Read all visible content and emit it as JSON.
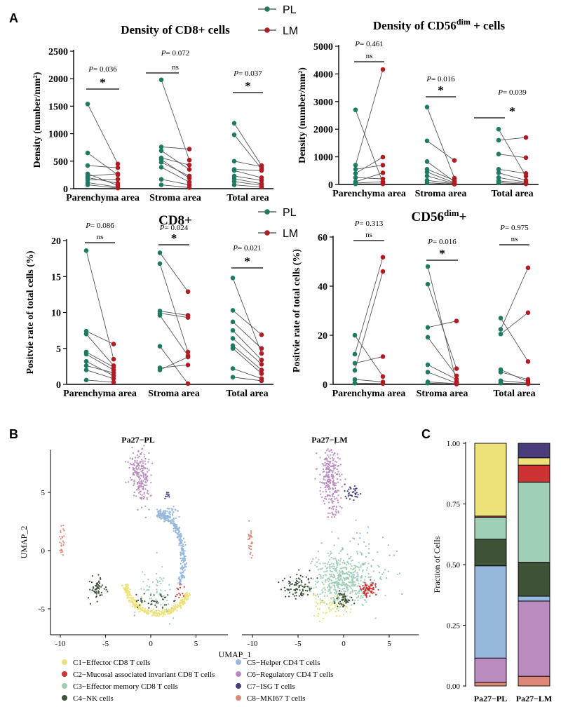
{
  "panel_labels": {
    "a": "A",
    "b": "B",
    "c": "C"
  },
  "legend": {
    "pl": "PL",
    "lm": "LM"
  },
  "colors": {
    "pl": "#1f7a64",
    "lm": "#b01c24"
  },
  "chart_data": [
    {
      "type": "scatter",
      "title": "Density of CD8+ cells",
      "title_sup": "",
      "ylabel": "Density (number/mm²)",
      "ylim": [
        0,
        2500
      ],
      "yticks": [
        0,
        500,
        1000,
        1500,
        2000,
        2500
      ],
      "categories": [
        "Parenchyma area",
        "Stroma area",
        "Total area"
      ],
      "pl": [
        [
          1540,
          650,
          420,
          270,
          230,
          200,
          160,
          110,
          70
        ],
        [
          1980,
          760,
          690,
          560,
          530,
          480,
          390,
          170,
          70
        ],
        [
          1190,
          980,
          500,
          350,
          330,
          230,
          180,
          130,
          70
        ]
      ],
      "lm": [
        [
          450,
          380,
          270,
          250,
          170,
          100,
          60,
          30,
          10
        ],
        [
          720,
          520,
          430,
          350,
          230,
          190,
          120,
          70,
          20
        ],
        [
          420,
          400,
          360,
          330,
          200,
          150,
          90,
          60,
          30
        ]
      ],
      "pairs": [
        [
          [
            0,
            0
          ],
          [
            1,
            3
          ],
          [
            2,
            1
          ],
          [
            3,
            6
          ],
          [
            4,
            2
          ],
          [
            5,
            5
          ],
          [
            6,
            4
          ],
          [
            7,
            7
          ],
          [
            8,
            8
          ]
        ],
        [
          [
            0,
            1
          ],
          [
            1,
            0
          ],
          [
            2,
            3
          ],
          [
            3,
            2
          ],
          [
            4,
            5
          ],
          [
            5,
            4
          ],
          [
            6,
            6
          ],
          [
            7,
            7
          ],
          [
            8,
            8
          ]
        ],
        [
          [
            0,
            0
          ],
          [
            1,
            2
          ],
          [
            2,
            1
          ],
          [
            3,
            3
          ],
          [
            4,
            4
          ],
          [
            5,
            5
          ],
          [
            6,
            6
          ],
          [
            7,
            7
          ],
          [
            8,
            8
          ]
        ]
      ],
      "pvalues": [
        "0.036",
        "0.072",
        "0.037"
      ],
      "sig": [
        "*",
        "ns",
        "*"
      ]
    },
    {
      "type": "scatter",
      "title": "Density of CD56",
      "title_sup": "dim",
      "title_end": " + cells",
      "ylabel": "Density (number/mm²)",
      "ylim": [
        0,
        5000
      ],
      "yticks": [
        0,
        1000,
        2000,
        3000,
        4000,
        5000
      ],
      "categories": [
        "Parenchyma area",
        "Stroma area",
        "Total area"
      ],
      "pl": [
        [
          2700,
          700,
          550,
          400,
          250,
          100,
          50,
          20
        ],
        [
          2800,
          1580,
          830,
          550,
          450,
          310,
          150,
          60
        ],
        [
          2000,
          1600,
          1100,
          550,
          420,
          250,
          130,
          60
        ]
      ],
      "lm": [
        [
          4160,
          990,
          700,
          420,
          200,
          100,
          60,
          20
        ],
        [
          870,
          230,
          150,
          100,
          60,
          30,
          20,
          10
        ],
        [
          1700,
          970,
          400,
          300,
          150,
          80,
          40,
          20
        ]
      ],
      "pairs": [
        [
          [
            0,
            6
          ],
          [
            1,
            0
          ],
          [
            2,
            2
          ],
          [
            3,
            1
          ],
          [
            4,
            4
          ],
          [
            5,
            3
          ],
          [
            6,
            5
          ],
          [
            7,
            7
          ]
        ],
        [
          [
            0,
            1
          ],
          [
            1,
            0
          ],
          [
            2,
            3
          ],
          [
            3,
            2
          ],
          [
            4,
            4
          ],
          [
            5,
            5
          ],
          [
            6,
            6
          ],
          [
            7,
            7
          ]
        ],
        [
          [
            0,
            3
          ],
          [
            1,
            0
          ],
          [
            2,
            1
          ],
          [
            3,
            2
          ],
          [
            4,
            4
          ],
          [
            5,
            5
          ],
          [
            6,
            6
          ],
          [
            7,
            7
          ]
        ]
      ],
      "pvalues": [
        "0.461",
        "0.016",
        "0.039"
      ],
      "sig": [
        "ns",
        "*",
        "*"
      ],
      "nobar_index": 2
    },
    {
      "type": "scatter",
      "title": "CD8+",
      "title_sup": "",
      "ylabel": "Positvie rate of total cells (%)",
      "ylim": [
        0,
        20
      ],
      "yticks": [
        0,
        5,
        10,
        15,
        20
      ],
      "categories": [
        "Parenchyma area",
        "Stroma area",
        "Total area"
      ],
      "pl": [
        [
          18.6,
          7.4,
          7.0,
          4.5,
          4.2,
          3.2,
          2.6,
          2.0,
          0.6
        ],
        [
          18.3,
          16.8,
          10.2,
          9.9,
          9.6,
          5.3,
          2.3,
          2.0
        ],
        [
          14.8,
          10.3,
          8.7,
          7.5,
          6.4,
          5.4,
          5.0,
          2.2,
          1.0
        ]
      ],
      "lm": [
        [
          5.6,
          3.5,
          2.6,
          2.4,
          2.0,
          1.6,
          1.2,
          0.8,
          0.3
        ],
        [
          12.9,
          9.6,
          9.3,
          4.5,
          4.0,
          3.8,
          2.7,
          0.1
        ],
        [
          6.9,
          5.0,
          4.3,
          3.4,
          2.8,
          2.0,
          1.5,
          0.8,
          0.5
        ]
      ],
      "pairs": [
        [
          [
            0,
            1
          ],
          [
            1,
            0
          ],
          [
            2,
            2
          ],
          [
            3,
            3
          ],
          [
            4,
            4
          ],
          [
            5,
            6
          ],
          [
            6,
            5
          ],
          [
            7,
            7
          ],
          [
            8,
            8
          ]
        ],
        [
          [
            0,
            0
          ],
          [
            1,
            3
          ],
          [
            2,
            1
          ],
          [
            3,
            2
          ],
          [
            4,
            4
          ],
          [
            5,
            7
          ],
          [
            6,
            6
          ],
          [
            7,
            5
          ]
        ],
        [
          [
            0,
            2
          ],
          [
            1,
            0
          ],
          [
            2,
            1
          ],
          [
            3,
            3
          ],
          [
            4,
            4
          ],
          [
            5,
            5
          ],
          [
            6,
            6
          ],
          [
            7,
            7
          ],
          [
            8,
            8
          ]
        ]
      ],
      "pvalues": [
        "0.086",
        "0.024",
        "0.021"
      ],
      "sig": [
        "ns",
        "*",
        "*"
      ]
    },
    {
      "type": "scatter",
      "title": "CD56",
      "title_sup": "dim",
      "title_end": "+",
      "ylabel": "Positvie rate of total cells (%)",
      "ylim": [
        0,
        60
      ],
      "yticks": [
        0,
        20,
        40,
        60
      ],
      "categories": [
        "Parenchyma area",
        "Stroma area",
        "Total area"
      ],
      "pl": [
        [
          20.0,
          12.3,
          8.6,
          5.7,
          2.0,
          0.5
        ],
        [
          48.0,
          40.8,
          23.2,
          19.2,
          8.0,
          5.0,
          1.0,
          0.5
        ],
        [
          27.0,
          22.4,
          20.5,
          6.0,
          5.0,
          1.5,
          0.5
        ]
      ],
      "lm": [
        [
          51.8,
          46.0,
          11.3,
          3.2,
          1.0,
          0.3
        ],
        [
          25.8,
          6.4,
          3.5,
          2.0,
          1.0,
          0.5,
          0.3,
          0.1
        ],
        [
          47.5,
          29.2,
          9.3,
          2.0,
          1.0,
          0.5,
          0.2
        ]
      ],
      "pairs": [
        [
          [
            0,
            3
          ],
          [
            1,
            0
          ],
          [
            2,
            2
          ],
          [
            3,
            1
          ],
          [
            4,
            4
          ],
          [
            5,
            5
          ]
        ],
        [
          [
            0,
            4
          ],
          [
            1,
            1
          ],
          [
            2,
            0
          ],
          [
            3,
            2
          ],
          [
            4,
            3
          ],
          [
            5,
            5
          ],
          [
            6,
            6
          ],
          [
            7,
            7
          ]
        ],
        [
          [
            0,
            2
          ],
          [
            1,
            0
          ],
          [
            2,
            1
          ],
          [
            3,
            4
          ],
          [
            4,
            3
          ],
          [
            5,
            5
          ],
          [
            6,
            6
          ]
        ]
      ],
      "pvalues": [
        "0.313",
        "0.016",
        "0.975"
      ],
      "sig": [
        "ns",
        "*",
        "ns"
      ]
    },
    {
      "type": "scatter",
      "subtype": "umap",
      "titles": [
        "Pa27−PL",
        "Pa27−LM"
      ],
      "xlabel": "UMAP_1",
      "ylabel": "UMAP_2",
      "xticks": [
        -10,
        -5,
        0,
        5
      ],
      "xticks_right": [
        -10,
        -5,
        0,
        5
      ],
      "yticks": [
        -5,
        0,
        5
      ],
      "clusters": [
        {
          "id": "C1",
          "label": "C1−Effector CD8 T cells",
          "color": "#ede27a"
        },
        {
          "id": "C2",
          "label": "C2−Mucosal associated invariant CD8 T cells",
          "color": "#cc3333"
        },
        {
          "id": "C3",
          "label": "C3−Effector memory CD8 T cells",
          "color": "#9fcfb4"
        },
        {
          "id": "C4",
          "label": "C4−NK cells",
          "color": "#3d5236"
        },
        {
          "id": "C5",
          "label": "C5−Helper CD4 T cells",
          "color": "#95b8dc"
        },
        {
          "id": "C6",
          "label": "C6−Regulatory CD4 T cells",
          "color": "#b98bbf"
        },
        {
          "id": "C7",
          "label": "C7−ISG T cells",
          "color": "#4a3c7a"
        },
        {
          "id": "C8",
          "label": "C8−MKI67 T cells",
          "color": "#dd8877"
        }
      ]
    },
    {
      "type": "bar",
      "subtype": "stacked",
      "ylabel": "Fraction of Cells",
      "ylim": [
        0,
        1
      ],
      "yticks": [
        "0.00",
        "0.25",
        "0.50",
        "0.75",
        "1.00"
      ],
      "categories": [
        "Pa27−PL",
        "Pa27−LM"
      ],
      "series": [
        {
          "name": "C8",
          "values": [
            0.015,
            0.04
          ]
        },
        {
          "name": "C6",
          "values": [
            0.1,
            0.31
          ]
        },
        {
          "name": "C5",
          "values": [
            0.38,
            0.02
          ]
        },
        {
          "name": "C4",
          "values": [
            0.11,
            0.14
          ]
        },
        {
          "name": "C3",
          "values": [
            0.09,
            0.33
          ]
        },
        {
          "name": "C2",
          "values": [
            0.005,
            0.07
          ]
        },
        {
          "name": "C1",
          "values": [
            0.3,
            0.03
          ]
        },
        {
          "name": "C7",
          "values": [
            0.0,
            0.06
          ]
        }
      ]
    }
  ]
}
